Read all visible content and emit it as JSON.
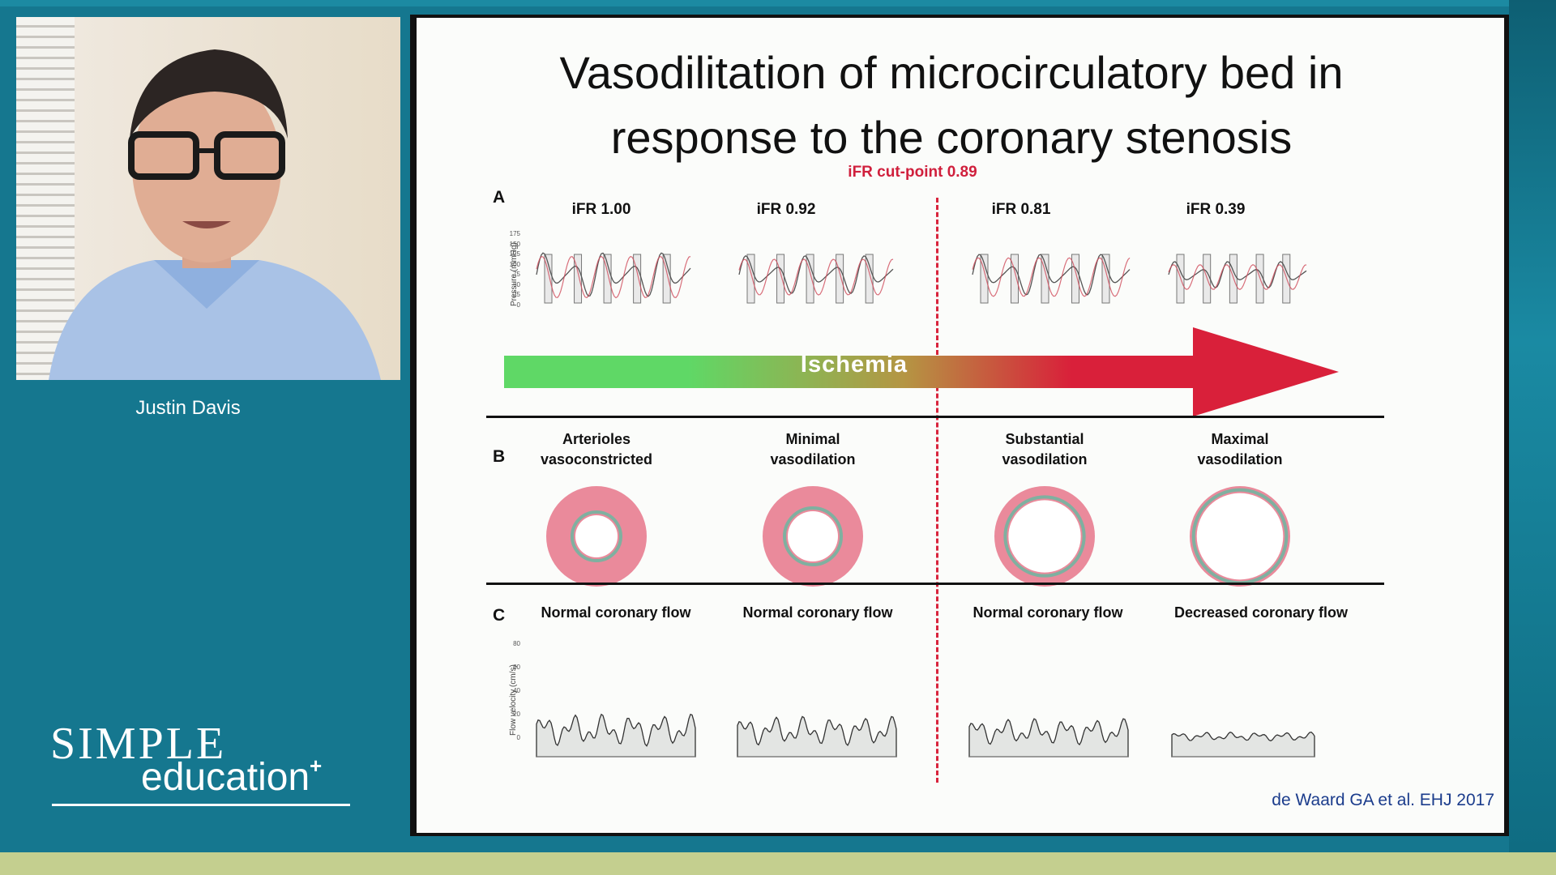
{
  "speaker": {
    "name": "Justin Davis"
  },
  "logo": {
    "line1": "SIMPLE",
    "line2": "education",
    "mark": "+"
  },
  "slide": {
    "title_line1": "Vasodilitation of microcirculatory bed in",
    "title_line2": "response to the coronary stenosis",
    "cutpoint": "iFR cut-point 0.89",
    "panel_a": {
      "letter": "A",
      "y_axis": "Pressure (mmHg)",
      "y_ticks": [
        "175",
        "150",
        "125",
        "100",
        "75",
        "50",
        "25",
        "0"
      ],
      "ifr_values": [
        "iFR 1.00",
        "iFR 0.92",
        "iFR 0.81",
        "iFR 0.39"
      ]
    },
    "ischemia_label": "Ischemia",
    "colors": {
      "arrow_start": "#5fd866",
      "arrow_end": "#d9203a",
      "vessel_wall": "#ea8a9b",
      "cutpoint": "#d01f3c",
      "citation": "#1b3c8c"
    },
    "panel_b": {
      "letter": "B",
      "states": [
        {
          "line1": "Arterioles",
          "line2": "vasoconstricted",
          "lumen": 0.42
        },
        {
          "line1": "Minimal",
          "line2": "vasodilation",
          "lumen": 0.5
        },
        {
          "line1": "Substantial",
          "line2": "vasodilation",
          "lumen": 0.72
        },
        {
          "line1": "Maximal",
          "line2": "vasodilation",
          "lumen": 0.86
        }
      ]
    },
    "panel_c": {
      "letter": "C",
      "y_axis": "Flow velocity (cm/s)",
      "y_ticks": [
        "80",
        "60",
        "40",
        "20",
        "0"
      ],
      "flows": [
        "Normal coronary flow",
        "Normal coronary flow",
        "Normal coronary flow",
        "Decreased coronary flow"
      ]
    },
    "citation": "de Waard GA et al. EHJ 2017"
  }
}
